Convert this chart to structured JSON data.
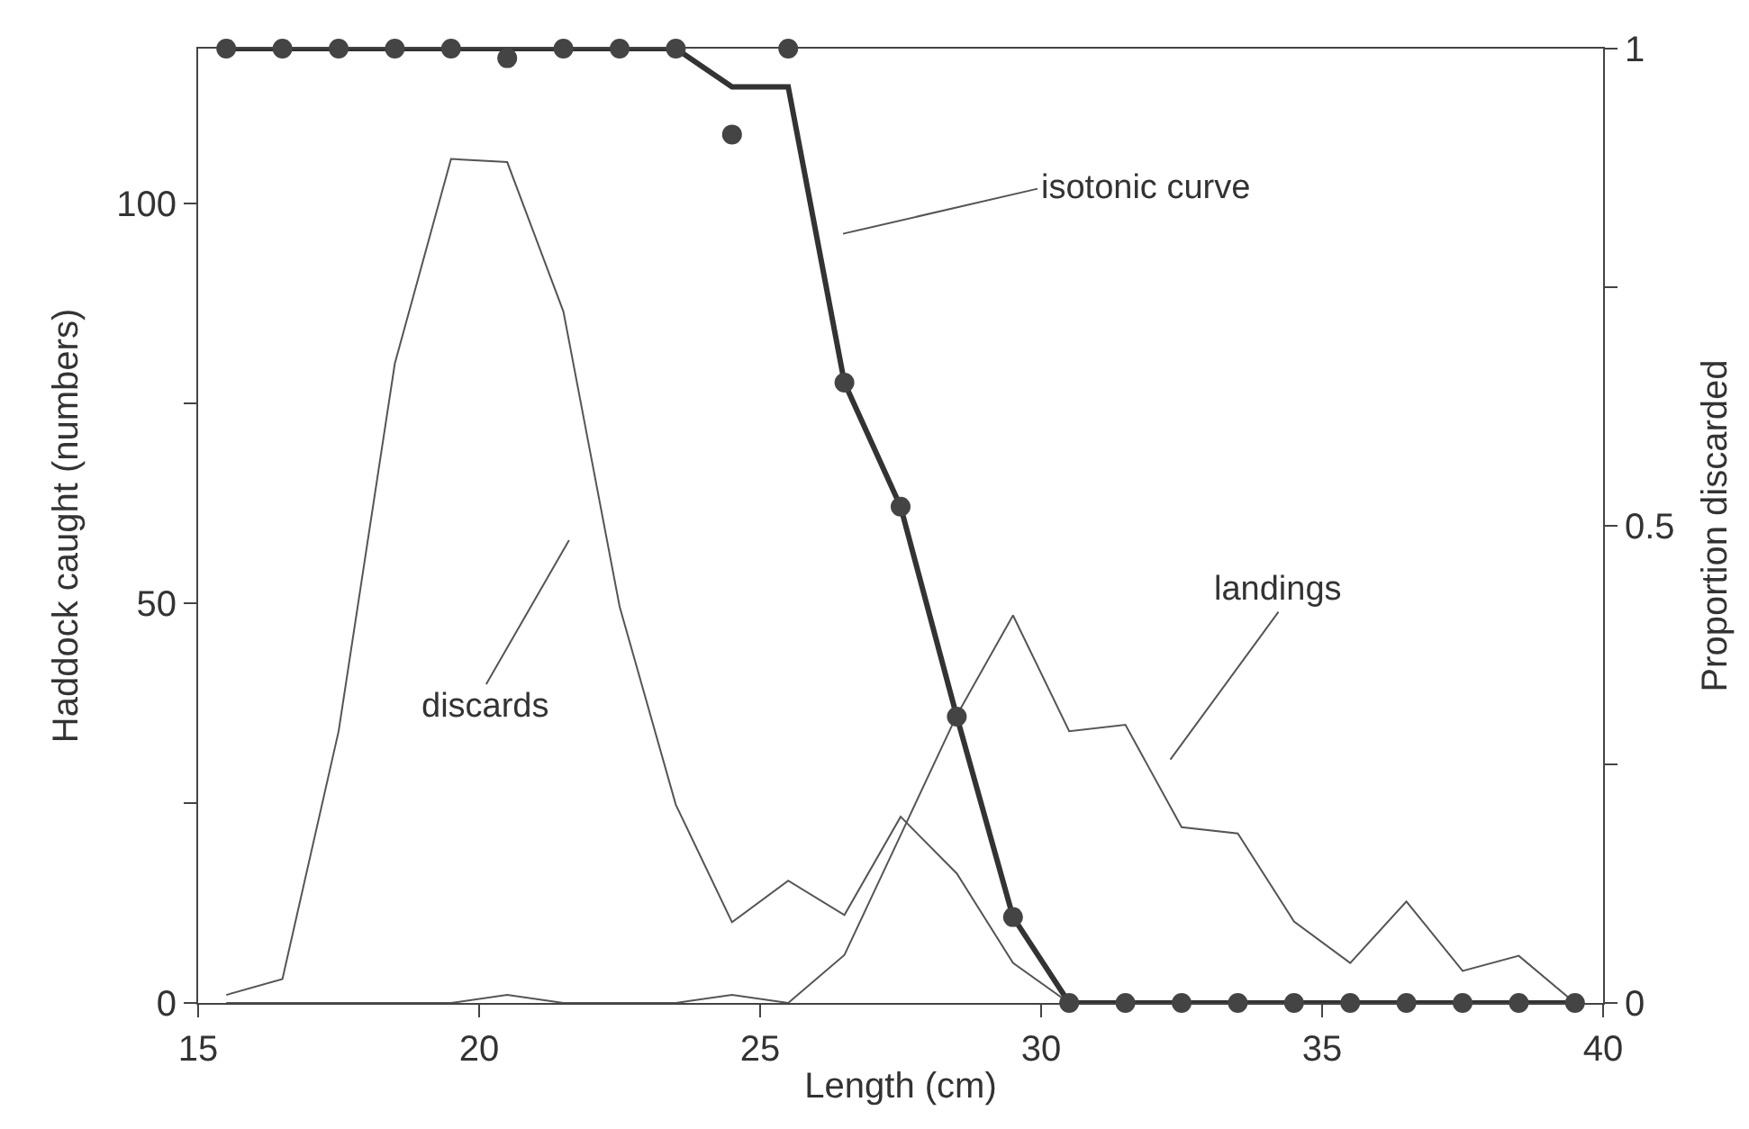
{
  "chart_data": {
    "type": "line",
    "xlabel": "Length (cm)",
    "ylabel": "Haddock caught (numbers)",
    "y2label": "Proportion discarded",
    "xlim": [
      15,
      40
    ],
    "xticks": [
      15,
      20,
      25,
      30,
      35,
      40
    ],
    "ylim": [
      0,
      119.4
    ],
    "yticks": [
      0,
      {
        "value": 25,
        "label": null
      },
      50,
      {
        "value": 75,
        "label": null
      },
      100
    ],
    "y2lim": [
      0,
      1
    ],
    "y2ticks": [
      0,
      {
        "value": 0.25,
        "label": null
      },
      0.5,
      {
        "value": 0.75,
        "label": null
      },
      1
    ],
    "series": [
      {
        "color": "#555555",
        "marker": "none",
        "x": [
          15.5,
          16.5,
          17.5,
          18.5,
          19.5,
          20.5,
          21.5,
          22.5,
          23.5,
          24.5,
          25.5,
          26.5,
          27.5,
          28.5,
          29.5,
          30.5,
          31.5,
          32.5,
          33.5,
          34.5,
          35.5,
          36.5,
          37.5,
          38.5,
          39.5
        ],
        "values": [
          1,
          3,
          34,
          80,
          105.6,
          105.2,
          86.5,
          49.6,
          24.8,
          10.1,
          15.3,
          11,
          23.3,
          16.2,
          5,
          0,
          0,
          0,
          0,
          0,
          0,
          0,
          0,
          0,
          0
        ]
      },
      {
        "color": "#555555",
        "marker": "none",
        "x": [
          15.5,
          16.5,
          17.5,
          18.5,
          19.5,
          20.5,
          21.5,
          22.5,
          23.5,
          24.5,
          25.5,
          26.5,
          27.5,
          28.5,
          29.5,
          30.5,
          31.5,
          32.5,
          33.5,
          34.5,
          35.5,
          36.5,
          37.5,
          38.5,
          39.5
        ],
        "values": [
          0,
          0,
          0,
          0,
          0,
          1,
          0,
          0,
          0,
          1,
          0,
          6,
          21,
          36,
          48.5,
          34,
          34.8,
          22,
          21.2,
          10.2,
          5,
          12.7,
          4,
          5.9,
          0
        ]
      },
      {
        "axis": "y2",
        "color": "#333333",
        "marker": "none",
        "x": [
          15.5,
          16.5,
          17.5,
          18.5,
          19.5,
          20.5,
          21.5,
          22.5,
          23.5,
          24.5,
          25.5,
          26.5,
          27.5,
          28.5,
          29.5,
          30.5,
          31.5,
          32.5,
          33.5,
          34.5,
          35.5,
          36.5,
          37.5,
          38.5,
          39.5
        ],
        "values": [
          1,
          1,
          1,
          1,
          1,
          1,
          1,
          1,
          1,
          0.96,
          0.96,
          0.65,
          0.52,
          0.3,
          0.09,
          0,
          0,
          0,
          0,
          0,
          0,
          0,
          0,
          0,
          0
        ]
      },
      {
        "type": "scatter",
        "axis": "y2",
        "color": "#444444",
        "marker": "circle",
        "x": [
          15.5,
          16.5,
          17.5,
          18.5,
          19.5,
          20.5,
          21.5,
          22.5,
          23.5,
          24.5,
          25.5,
          26.5,
          27.5,
          28.5,
          29.5,
          30.5,
          31.5,
          32.5,
          33.5,
          34.5,
          35.5,
          36.5,
          37.5,
          38.5,
          39.5
        ],
        "values": [
          1,
          1,
          1,
          1,
          1,
          0.99,
          1,
          1,
          1,
          0.91,
          1,
          0.65,
          0.52,
          0.3,
          0.09,
          0,
          0,
          0,
          0,
          0,
          0,
          0,
          0,
          0,
          0
        ]
      }
    ],
    "annotations": [
      "isotonic curve",
      "discards",
      "landings"
    ]
  }
}
